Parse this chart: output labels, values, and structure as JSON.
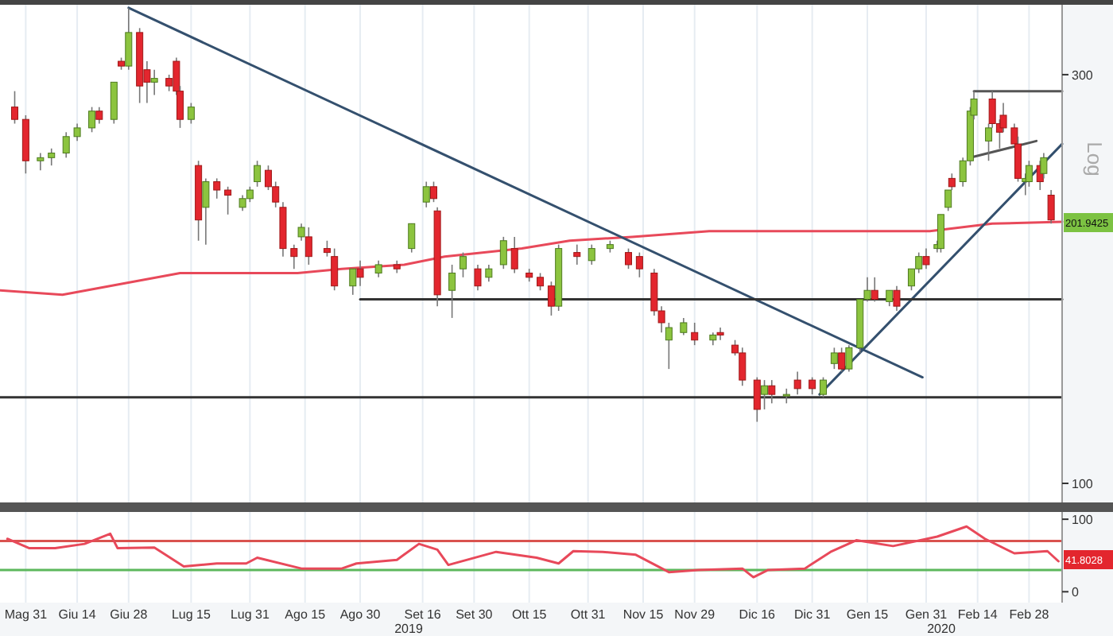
{
  "chart_data": [
    {
      "type": "candlestick",
      "log": true,
      "tick_labels": "y",
      "grid": "x",
      "xlim": [
        "2019-05-24",
        "2020-03-08"
      ],
      "ylim": [
        95,
        362
      ],
      "yticks": [
        100,
        300
      ],
      "xticks": [
        {
          "value": "2019-05-31",
          "label": null
        },
        {
          "value": "2019-06-14",
          "label": null
        },
        {
          "value": "2019-06-28",
          "label": null
        },
        {
          "value": "2019-07-15",
          "label": null
        },
        {
          "value": "2019-07-31",
          "label": null
        },
        {
          "value": "2019-08-15",
          "label": null
        },
        {
          "value": "2019-08-30",
          "label": null
        },
        {
          "value": "2019-09-16",
          "label": null
        },
        {
          "value": "2019-09-30",
          "label": null
        },
        {
          "value": "2019-10-15",
          "label": null
        },
        {
          "value": "2019-10-31",
          "label": null
        },
        {
          "value": "2019-11-15",
          "label": null
        },
        {
          "value": "2019-11-29",
          "label": null
        },
        {
          "value": "2019-12-16",
          "label": null
        },
        {
          "value": "2019-12-31",
          "label": null
        },
        {
          "value": "2020-01-15",
          "label": null
        },
        {
          "value": "2020-01-31",
          "label": null
        },
        {
          "value": "2020-02-14",
          "label": null
        },
        {
          "value": "2020-02-28",
          "label": null
        }
      ],
      "x": [
        "2019-05-28",
        "2019-05-31",
        "2019-06-04",
        "2019-06-07",
        "2019-06-11",
        "2019-06-14",
        "2019-06-18",
        "2019-06-20",
        "2019-06-24",
        "2019-06-26",
        "2019-06-28",
        "2019-07-01",
        "2019-07-03",
        "2019-07-05",
        "2019-07-09",
        "2019-07-11",
        "2019-07-12",
        "2019-07-15",
        "2019-07-17",
        "2019-07-19",
        "2019-07-22",
        "2019-07-25",
        "2019-07-29",
        "2019-07-31",
        "2019-08-02",
        "2019-08-05",
        "2019-08-07",
        "2019-08-09",
        "2019-08-12",
        "2019-08-14",
        "2019-08-16",
        "2019-08-21",
        "2019-08-23",
        "2019-08-28",
        "2019-08-30",
        "2019-09-04",
        "2019-09-09",
        "2019-09-13",
        "2019-09-17",
        "2019-09-19",
        "2019-09-20",
        "2019-09-24",
        "2019-09-27",
        "2019-10-01",
        "2019-10-04",
        "2019-10-08",
        "2019-10-11",
        "2019-10-15",
        "2019-10-18",
        "2019-10-21",
        "2019-10-23",
        "2019-10-28",
        "2019-11-01",
        "2019-11-06",
        "2019-11-11",
        "2019-11-14",
        "2019-11-18",
        "2019-11-20",
        "2019-11-22",
        "2019-11-26",
        "2019-11-29",
        "2019-12-04",
        "2019-12-06",
        "2019-12-10",
        "2019-12-12",
        "2019-12-16",
        "2019-12-18",
        "2019-12-20",
        "2019-12-24",
        "2019-12-27",
        "2019-12-31",
        "2020-01-03",
        "2020-01-06",
        "2020-01-08",
        "2020-01-10",
        "2020-01-13",
        "2020-01-15",
        "2020-01-17",
        "2020-01-21",
        "2020-01-23",
        "2020-01-27",
        "2020-01-29",
        "2020-01-31",
        "2020-02-03",
        "2020-02-04",
        "2020-02-06",
        "2020-02-07",
        "2020-02-10",
        "2020-02-12",
        "2020-02-13",
        "2020-02-17",
        "2020-02-18",
        "2020-02-20",
        "2020-02-21",
        "2020-02-24",
        "2020-02-25",
        "2020-02-27",
        "2020-02-28",
        "2020-03-02",
        "2020-03-03",
        "2020-03-05"
      ],
      "ohlc": [
        [
          275,
          287,
          263,
          266
        ],
        [
          266,
          269,
          230,
          238
        ],
        [
          238,
          243,
          232,
          240
        ],
        [
          240,
          246,
          235,
          243
        ],
        [
          243,
          257,
          240,
          254
        ],
        [
          254,
          263,
          251,
          260
        ],
        [
          260,
          275,
          257,
          272
        ],
        [
          272,
          275,
          263,
          266
        ],
        [
          266,
          294,
          263,
          294
        ],
        [
          311,
          314,
          304,
          307
        ],
        [
          307,
          359,
          304,
          336
        ],
        [
          336,
          340,
          278,
          291
        ],
        [
          304,
          311,
          278,
          294
        ],
        [
          294,
          304,
          284,
          297
        ],
        [
          297,
          300,
          287,
          291
        ],
        [
          311,
          314,
          284,
          287
        ],
        [
          287,
          291,
          260,
          266
        ],
        [
          266,
          278,
          263,
          275
        ],
        [
          235,
          238,
          192,
          203
        ],
        [
          210,
          227,
          190,
          225
        ],
        [
          225,
          227,
          215,
          220
        ],
        [
          220,
          222,
          206,
          217
        ],
        [
          210,
          217,
          208,
          215
        ],
        [
          215,
          222,
          213,
          220
        ],
        [
          225,
          238,
          222,
          235
        ],
        [
          232,
          235,
          220,
          222
        ],
        [
          222,
          225,
          210,
          213
        ],
        [
          210,
          213,
          184,
          188
        ],
        [
          188,
          190,
          178,
          184
        ],
        [
          194,
          201,
          192,
          199
        ],
        [
          194,
          199,
          180,
          184
        ],
        [
          188,
          192,
          184,
          186
        ],
        [
          184,
          188,
          168,
          170
        ],
        [
          170,
          178,
          166,
          178
        ],
        [
          178,
          182,
          170,
          174
        ],
        [
          176,
          182,
          174,
          180
        ],
        [
          180,
          182,
          176,
          178
        ],
        [
          188,
          201,
          186,
          201
        ],
        [
          213,
          225,
          210,
          222
        ],
        [
          222,
          225,
          213,
          215
        ],
        [
          208,
          210,
          161,
          166
        ],
        [
          168,
          180,
          156,
          176
        ],
        [
          178,
          186,
          174,
          184
        ],
        [
          178,
          180,
          168,
          170
        ],
        [
          174,
          180,
          172,
          178
        ],
        [
          180,
          194,
          178,
          192
        ],
        [
          188,
          194,
          176,
          178
        ],
        [
          176,
          178,
          172,
          174
        ],
        [
          174,
          176,
          168,
          170
        ],
        [
          170,
          172,
          157,
          161
        ],
        [
          161,
          190,
          159,
          188
        ],
        [
          186,
          190,
          180,
          184
        ],
        [
          182,
          190,
          180,
          188
        ],
        [
          188,
          192,
          186,
          190
        ],
        [
          186,
          188,
          178,
          180
        ],
        [
          184,
          186,
          174,
          178
        ],
        [
          176,
          178,
          157,
          159
        ],
        [
          159,
          161,
          150,
          154
        ],
        [
          147,
          154,
          136,
          152
        ],
        [
          150,
          156,
          149,
          154
        ],
        [
          150,
          154,
          145,
          147
        ],
        [
          147,
          150,
          145,
          149
        ],
        [
          150,
          152,
          147,
          149
        ],
        [
          145,
          147,
          141,
          142
        ],
        [
          142,
          144,
          130,
          132
        ],
        [
          132,
          133,
          118,
          122
        ],
        [
          127,
          132,
          122,
          130
        ],
        [
          130,
          132,
          124,
          127
        ],
        [
          127,
          129,
          124,
          127
        ],
        [
          132,
          135,
          127,
          129
        ],
        [
          132,
          133,
          127,
          129
        ],
        [
          127,
          133,
          126,
          132
        ],
        [
          138,
          144,
          136,
          142
        ],
        [
          142,
          144,
          135,
          136
        ],
        [
          136,
          145,
          135,
          144
        ],
        [
          144,
          164,
          142,
          164
        ],
        [
          164,
          174,
          163,
          168
        ],
        [
          168,
          174,
          163,
          164
        ],
        [
          163,
          168,
          161,
          168
        ],
        [
          168,
          170,
          159,
          161
        ],
        [
          170,
          178,
          168,
          178
        ],
        [
          178,
          186,
          176,
          184
        ],
        [
          184,
          188,
          178,
          180
        ],
        [
          188,
          192,
          186,
          190
        ],
        [
          188,
          206,
          186,
          206
        ],
        [
          210,
          220,
          208,
          220
        ],
        [
          227,
          230,
          220,
          222
        ],
        [
          225,
          240,
          222,
          238
        ],
        [
          238,
          275,
          235,
          272
        ],
        [
          269,
          287,
          266,
          281
        ],
        [
          251,
          263,
          238,
          260
        ],
        [
          281,
          287,
          260,
          263
        ],
        [
          263,
          266,
          246,
          257
        ],
        [
          269,
          278,
          257,
          260
        ],
        [
          260,
          263,
          249,
          249
        ],
        [
          249,
          254,
          225,
          227
        ],
        [
          225,
          230,
          217,
          227
        ],
        [
          225,
          238,
          222,
          235
        ],
        [
          235,
          238,
          220,
          225
        ],
        [
          230,
          243,
          227,
          240
        ],
        [
          217,
          220,
          201,
          203
        ]
      ],
      "series": [
        {
          "type": "line",
          "color": "#e8495a",
          "x": [
            "2019-05-24",
            "2019-06-10",
            "2019-07-12",
            "2019-08-13",
            "2019-08-25",
            "2019-09-11",
            "2019-09-22",
            "2019-10-13",
            "2019-10-26",
            "2019-11-12",
            "2019-12-03",
            "2020-02-01",
            "2020-02-18",
            "2020-03-08"
          ],
          "values": [
            168,
            166,
            176,
            176,
            178,
            180,
            184,
            188,
            192,
            194,
            197,
            197,
            201,
            202
          ]
        },
        {
          "type": "line",
          "color": "#34506e",
          "x": [
            "2019-06-28",
            "2020-01-30"
          ],
          "values": [
            359,
            133
          ]
        },
        {
          "type": "line",
          "color": "#34506e",
          "x": [
            "2020-01-02",
            "2020-03-08"
          ],
          "values": [
            127,
            249
          ]
        },
        {
          "type": "line",
          "color": "#333333",
          "x": [
            "2019-08-30",
            "2020-03-08"
          ],
          "values": [
            164,
            164
          ]
        },
        {
          "type": "line",
          "color": "#555555",
          "x": [
            "2020-02-13",
            "2020-03-08"
          ],
          "values": [
            287,
            287
          ]
        },
        {
          "type": "line",
          "color": "#555555",
          "x": [
            "2020-02-12",
            "2020-03-01"
          ],
          "values": [
            240,
            251
          ]
        }
      ],
      "ref_lines": [
        {
          "axis": "y",
          "value": 126,
          "color": "#333333"
        }
      ],
      "annotations": [
        "201.9425",
        "Log"
      ]
    },
    {
      "type": "line",
      "grid": "x",
      "xlim": [
        "2019-05-24",
        "2020-03-08"
      ],
      "ylim": [
        -15,
        110
      ],
      "yticks": [
        0,
        100
      ],
      "xticks": [
        {
          "value": "2019-05-31",
          "label": "Mag 31"
        },
        {
          "value": "2019-06-14",
          "label": "Giu 14"
        },
        {
          "value": "2019-06-28",
          "label": "Giu 28"
        },
        {
          "value": "2019-07-15",
          "label": "Lug 15"
        },
        {
          "value": "2019-07-31",
          "label": "Lug 31"
        },
        {
          "value": "2019-08-15",
          "label": "Ago 15"
        },
        {
          "value": "2019-08-30",
          "label": "Ago 30"
        },
        {
          "value": "2019-09-16",
          "label": "Set 16"
        },
        {
          "value": "2019-09-30",
          "label": "Set 30"
        },
        {
          "value": "2019-10-15",
          "label": "Ott 15"
        },
        {
          "value": "2019-10-31",
          "label": "Ott 31"
        },
        {
          "value": "2019-11-15",
          "label": "Nov 15"
        },
        {
          "value": "2019-11-29",
          "label": "Nov 29"
        },
        {
          "value": "2019-12-16",
          "label": "Dic 16"
        },
        {
          "value": "2019-12-31",
          "label": "Dic 31"
        },
        {
          "value": "2020-01-15",
          "label": "Gen 15"
        },
        {
          "value": "2020-01-31",
          "label": "Gen 31"
        },
        {
          "value": "2020-02-14",
          "label": "Feb 14"
        },
        {
          "value": "2020-02-28",
          "label": "Feb 28"
        }
      ],
      "series": [
        {
          "color": "#e8495a",
          "x": [
            "2019-05-26",
            "2019-06-01",
            "2019-06-08",
            "2019-06-16",
            "2019-06-23",
            "2019-06-25",
            "2019-07-05",
            "2019-07-13",
            "2019-07-22",
            "2019-07-30",
            "2019-08-02",
            "2019-08-14",
            "2019-08-25",
            "2019-08-29",
            "2019-09-09",
            "2019-09-15",
            "2019-09-20",
            "2019-09-23",
            "2019-10-06",
            "2019-10-17",
            "2019-10-23",
            "2019-10-27",
            "2019-11-04",
            "2019-11-13",
            "2019-11-22",
            "2019-11-30",
            "2019-12-12",
            "2019-12-15",
            "2019-12-19",
            "2019-12-29",
            "2020-01-05",
            "2020-01-12",
            "2020-01-22",
            "2020-02-03",
            "2020-02-11",
            "2020-02-16",
            "2020-02-24",
            "2020-03-04",
            "2020-03-07"
          ],
          "values": [
            73,
            60,
            60,
            66,
            80,
            60,
            61,
            35,
            39,
            39,
            47,
            32,
            32,
            39,
            44,
            66,
            58,
            37,
            55,
            47,
            39,
            56,
            55,
            51,
            27,
            30,
            32,
            20,
            30,
            32,
            55,
            71,
            63,
            76,
            90,
            73,
            53,
            56,
            42
          ]
        }
      ],
      "ref_lines": [
        {
          "axis": "y",
          "value": 70,
          "color": "#d9534f"
        },
        {
          "axis": "y",
          "value": 30,
          "color": "#5cb85c"
        }
      ],
      "annotations": [
        "41.8028",
        "2019",
        "2020"
      ]
    }
  ]
}
